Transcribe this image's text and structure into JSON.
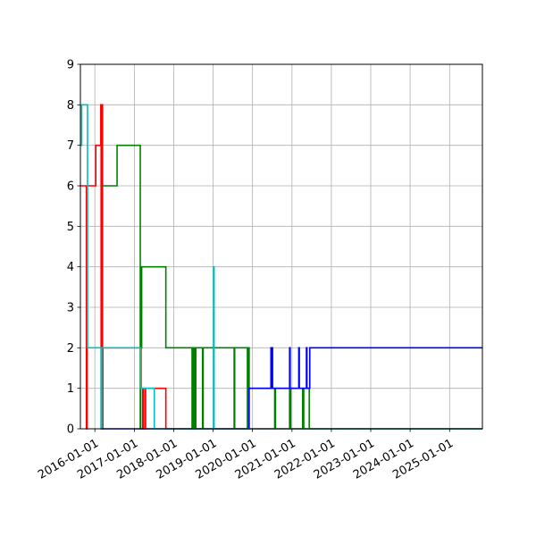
{
  "chart_data": {
    "type": "line",
    "title": "",
    "xlabel": "",
    "ylabel": "",
    "grid": true,
    "ylim": [
      0,
      9
    ],
    "xlim": [
      "2015-08-20",
      "2025-11-01"
    ],
    "y_ticks": [
      "0",
      "1",
      "2",
      "3",
      "4",
      "5",
      "6",
      "7",
      "8",
      "9"
    ],
    "x_ticks": [
      {
        "label": "2016-01-01",
        "date": "2016-01-01"
      },
      {
        "label": "2017-01-01",
        "date": "2017-01-01"
      },
      {
        "label": "2018-01-01",
        "date": "2018-01-01"
      },
      {
        "label": "2019-01-01",
        "date": "2019-01-01"
      },
      {
        "label": "2020-01-01",
        "date": "2020-01-01"
      },
      {
        "label": "2021-01-01",
        "date": "2021-01-01"
      },
      {
        "label": "2022-01-01",
        "date": "2022-01-01"
      },
      {
        "label": "2023-01-01",
        "date": "2023-01-01"
      },
      {
        "label": "2024-01-01",
        "date": "2024-01-01"
      },
      {
        "label": "2025-01-01",
        "date": "2025-01-01"
      }
    ],
    "series": [
      {
        "color": "#ff0000",
        "steps": [
          [
            "2015-08-20",
            6
          ],
          [
            "2015-10-15",
            0
          ],
          [
            "2015-10-22",
            6
          ],
          [
            "2016-01-05",
            6
          ],
          [
            "2016-01-10",
            7
          ],
          [
            "2016-02-20",
            7
          ],
          [
            "2016-02-25",
            8
          ],
          [
            "2016-02-28",
            0
          ],
          [
            "2016-03-01",
            8
          ],
          [
            "2016-03-05",
            0
          ],
          [
            "2016-03-10",
            8
          ],
          [
            "2016-03-12",
            0
          ],
          [
            "2016-03-15",
            2
          ],
          [
            "2017-03-01",
            2
          ],
          [
            "2017-03-05",
            1
          ],
          [
            "2017-03-20",
            0
          ],
          [
            "2017-03-25",
            1
          ],
          [
            "2017-04-10",
            0
          ],
          [
            "2017-04-15",
            1
          ],
          [
            "2017-10-15",
            1
          ],
          [
            "2017-10-20",
            0
          ],
          [
            "2025-11-01",
            0
          ]
        ]
      },
      {
        "color": "#008000",
        "steps": [
          [
            "2016-03-10",
            6
          ],
          [
            "2016-07-20",
            6
          ],
          [
            "2016-07-25",
            7
          ],
          [
            "2017-02-20",
            7
          ],
          [
            "2017-02-25",
            0
          ],
          [
            "2017-03-01",
            2
          ],
          [
            "2017-03-10",
            4
          ],
          [
            "2017-10-15",
            4
          ],
          [
            "2017-10-20",
            2
          ],
          [
            "2018-06-15",
            2
          ],
          [
            "2018-06-20",
            0
          ],
          [
            "2018-06-25",
            2
          ],
          [
            "2018-07-05",
            0
          ],
          [
            "2018-07-10",
            2
          ],
          [
            "2018-07-20",
            0
          ],
          [
            "2018-07-25",
            2
          ],
          [
            "2018-09-25",
            0
          ],
          [
            "2018-10-01",
            2
          ],
          [
            "2019-07-10",
            2
          ],
          [
            "2019-07-15",
            0
          ],
          [
            "2019-07-20",
            2
          ],
          [
            "2019-11-10",
            2
          ],
          [
            "2019-11-15",
            0
          ],
          [
            "2019-11-20",
            2
          ],
          [
            "2019-12-01",
            1
          ],
          [
            "2020-07-20",
            1
          ],
          [
            "2020-07-25",
            0
          ],
          [
            "2020-08-01",
            1
          ],
          [
            "2020-12-05",
            1
          ],
          [
            "2020-12-10",
            0
          ],
          [
            "2020-12-20",
            1
          ],
          [
            "2021-04-05",
            1
          ],
          [
            "2021-04-10",
            0
          ],
          [
            "2021-04-20",
            1
          ],
          [
            "2021-06-05",
            1
          ],
          [
            "2021-06-10",
            0
          ],
          [
            "2025-11-01",
            0
          ]
        ]
      },
      {
        "color": "#0000ff",
        "steps": [
          [
            "2016-03-10",
            0
          ],
          [
            "2019-11-25",
            0
          ],
          [
            "2019-12-01",
            1
          ],
          [
            "2020-06-15",
            1
          ],
          [
            "2020-06-20",
            2
          ],
          [
            "2020-06-25",
            1
          ],
          [
            "2020-07-01",
            2
          ],
          [
            "2020-07-05",
            1
          ],
          [
            "2020-12-05",
            1
          ],
          [
            "2020-12-10",
            2
          ],
          [
            "2020-12-15",
            1
          ],
          [
            "2021-03-01",
            1
          ],
          [
            "2021-03-05",
            2
          ],
          [
            "2021-03-10",
            1
          ],
          [
            "2021-05-10",
            1
          ],
          [
            "2021-05-15",
            2
          ],
          [
            "2021-05-20",
            1
          ],
          [
            "2021-06-10",
            1
          ],
          [
            "2021-06-15",
            2
          ],
          [
            "2025-11-01",
            2
          ]
        ]
      },
      {
        "color": "#00bfbf",
        "steps": [
          [
            "2015-08-20",
            7
          ],
          [
            "2015-09-01",
            8
          ],
          [
            "2015-10-25",
            2
          ],
          [
            "2016-02-25",
            2
          ],
          [
            "2016-02-28",
            0
          ],
          [
            "2016-03-05",
            2
          ],
          [
            "2017-02-20",
            2
          ],
          [
            "2017-03-01",
            1
          ],
          [
            "2017-07-01",
            1
          ],
          [
            "2017-07-05",
            0
          ],
          [
            "2019-01-01",
            0
          ],
          [
            "2019-01-05",
            4
          ],
          [
            "2019-01-10",
            0
          ],
          [
            "2025-11-01",
            0
          ]
        ]
      }
    ]
  }
}
